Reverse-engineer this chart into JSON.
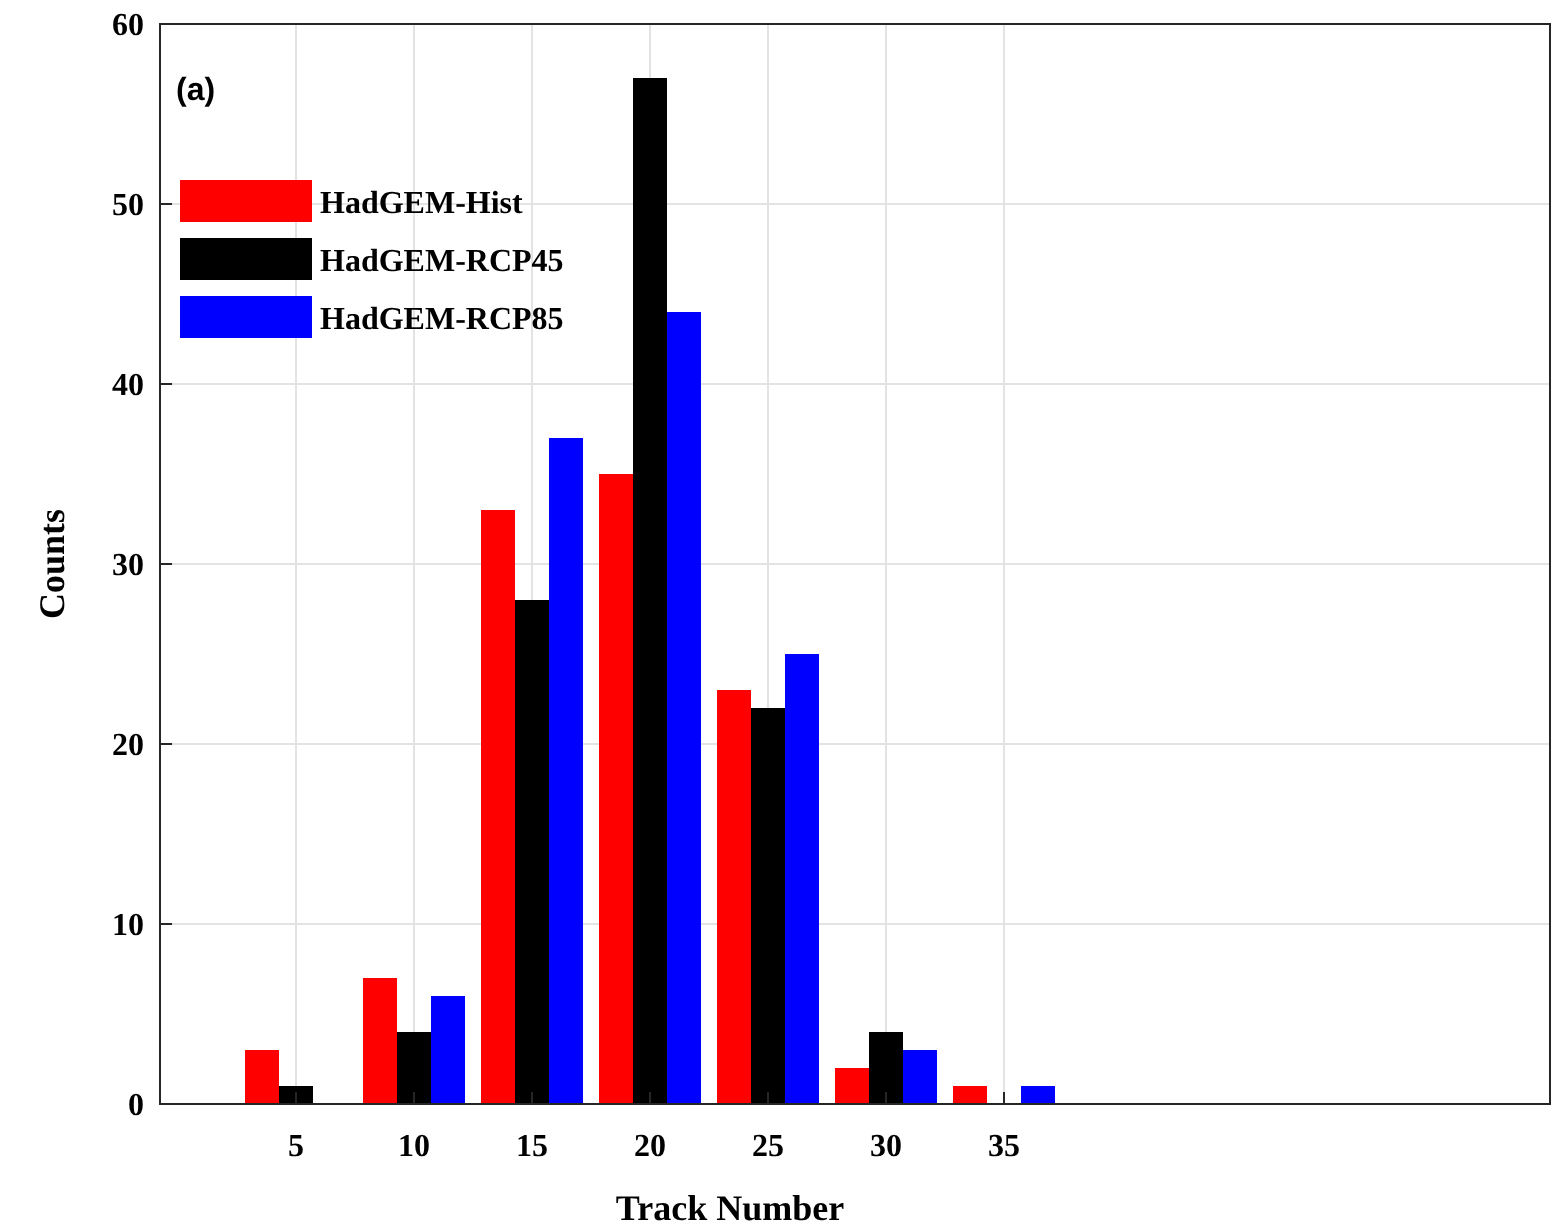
{
  "chart_data": {
    "type": "bar",
    "xlabel": "Track Number",
    "ylabel": "Counts",
    "annotations": [
      "(a)"
    ],
    "categories": [
      "5",
      "10",
      "15",
      "20",
      "25",
      "30",
      "35"
    ],
    "series": [
      {
        "name": "HadGEM-Hist",
        "color": "#ff0000",
        "values": [
          3,
          7,
          33,
          35,
          23,
          2,
          1
        ]
      },
      {
        "name": "HadGEM-RCP45",
        "color": "#000000",
        "values": [
          1,
          4,
          28,
          57,
          22,
          4,
          0
        ]
      },
      {
        "name": "HadGEM-RCP85",
        "color": "#0000ff",
        "values": [
          0,
          6,
          37,
          44,
          25,
          3,
          1
        ]
      }
    ],
    "ylim": [
      0,
      60
    ],
    "yticks": [
      0,
      10,
      20,
      30,
      40,
      50,
      60
    ],
    "grid": true,
    "legend": "top left"
  }
}
